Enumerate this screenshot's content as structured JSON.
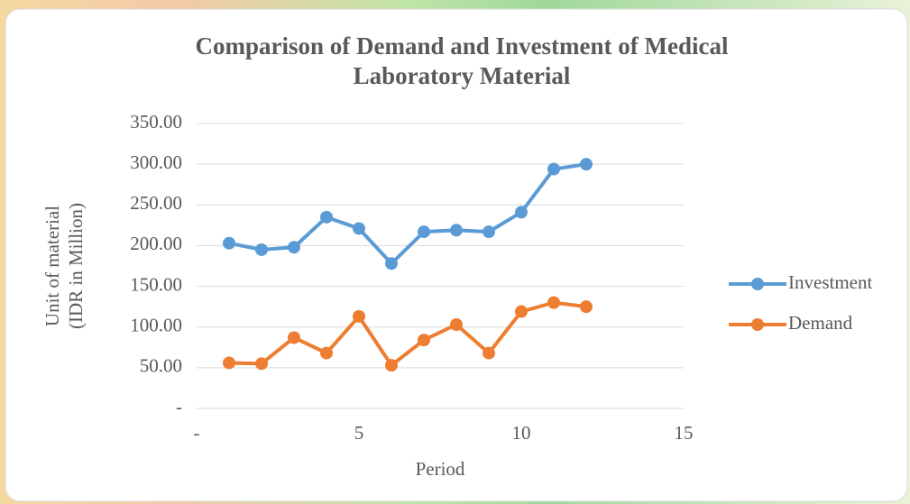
{
  "chart_data": {
    "type": "line",
    "title": [
      "Comparison of Demand and Investment of Medical",
      "Laboratory Material"
    ],
    "x_label": "Period",
    "y_label": [
      "Unit of material",
      "(IDR in Million)"
    ],
    "x": [
      1,
      2,
      3,
      4,
      5,
      6,
      7,
      8,
      9,
      10,
      11,
      12
    ],
    "series": [
      {
        "name": "Investment",
        "color": "#5b9bd5",
        "values": [
          203,
          195,
          198,
          235,
          221,
          178,
          217,
          219,
          217,
          241,
          294,
          300
        ]
      },
      {
        "name": "Demand",
        "color": "#ed7d31",
        "values": [
          56,
          55,
          87,
          68,
          113,
          53,
          84,
          103,
          68,
          119,
          130,
          125
        ]
      }
    ],
    "xlim": [
      0,
      15
    ],
    "xticks": [
      {
        "value": 0,
        "label": "-"
      },
      5,
      10,
      15
    ],
    "ylim": [
      0,
      350
    ],
    "yticks": [
      {
        "value": 0,
        "label": "-"
      },
      {
        "value": 50,
        "label": "50.00"
      },
      {
        "value": 100,
        "label": "100.00"
      },
      {
        "value": 150,
        "label": "150.00"
      },
      {
        "value": 200,
        "label": "200.00"
      },
      {
        "value": 250,
        "label": "250.00"
      },
      {
        "value": 300,
        "label": "300.00"
      },
      {
        "value": 350,
        "label": "350.00"
      }
    ],
    "grid": true,
    "legend": "right"
  }
}
